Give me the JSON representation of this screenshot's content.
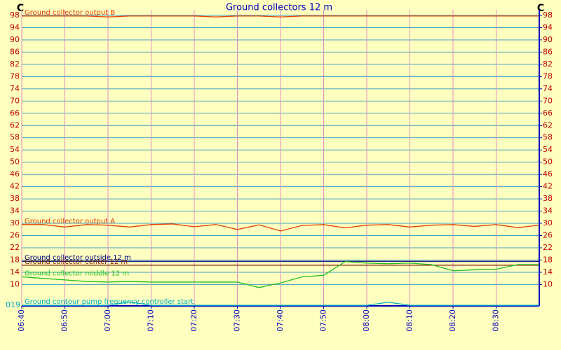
{
  "chart_data": {
    "type": "line",
    "title": "Ground collectors 12 m",
    "y_unit": "C",
    "annotation": "019",
    "x": [
      400,
      405,
      410,
      415,
      420,
      425,
      430,
      435,
      440,
      445,
      450,
      455,
      460,
      465,
      470,
      475,
      480,
      485,
      490,
      495,
      500,
      505,
      510,
      515,
      520
    ],
    "xlim": [
      400,
      520
    ],
    "xticks": [
      {
        "value": 400,
        "label": "06:40"
      },
      {
        "value": 410,
        "label": "06:50"
      },
      {
        "value": 420,
        "label": "07:00"
      },
      {
        "value": 430,
        "label": "07:10"
      },
      {
        "value": 440,
        "label": "07:20"
      },
      {
        "value": 450,
        "label": "07:30"
      },
      {
        "value": 460,
        "label": "07:40"
      },
      {
        "value": 470,
        "label": "07:50"
      },
      {
        "value": 480,
        "label": "08:00"
      },
      {
        "value": 490,
        "label": "08:10"
      },
      {
        "value": 500,
        "label": "08:20"
      },
      {
        "value": 510,
        "label": "08:30"
      }
    ],
    "ylim": [
      3,
      98
    ],
    "yticks": [
      98,
      94,
      90,
      86,
      82,
      78,
      74,
      70,
      66,
      62,
      58,
      54,
      50,
      46,
      42,
      38,
      34,
      30,
      26,
      22,
      18,
      14,
      10
    ],
    "grid": true,
    "series": [
      {
        "name": "Ground collector output B",
        "color": "#e04000",
        "values": [
          97.8,
          97.8,
          97.8,
          97.8,
          97.5,
          97.8,
          97.8,
          97.8,
          97.8,
          97.5,
          97.8,
          97.8,
          97.5,
          97.8,
          97.8,
          97.8,
          97.8,
          97.8,
          97.8,
          97.8,
          97.8,
          97.8,
          97.8,
          97.8,
          97.8
        ]
      },
      {
        "name": "Ground collector output A",
        "color": "#e04000",
        "values": [
          29.6,
          29.6,
          28.8,
          29.6,
          29.4,
          28.8,
          29.6,
          29.8,
          28.9,
          29.6,
          28.0,
          29.5,
          27.5,
          29.3,
          29.6,
          28.5,
          29.4,
          29.6,
          28.8,
          29.4,
          29.6,
          29.0,
          29.6,
          28.6,
          29.4
        ]
      },
      {
        "name": "Ground collector outside 12 m",
        "color": "#000080",
        "values": [
          17.6,
          17.6,
          17.6,
          17.6,
          17.6,
          17.6,
          17.6,
          17.6,
          17.6,
          17.6,
          17.6,
          17.6,
          17.6,
          17.6,
          17.6,
          17.6,
          17.6,
          17.6,
          17.6,
          17.6,
          17.6,
          17.6,
          17.6,
          17.6,
          17.6
        ]
      },
      {
        "name": "Ground collector center 12 m",
        "color": "#802000",
        "values": [
          16.3,
          16.3,
          16.3,
          16.3,
          16.3,
          16.3,
          16.3,
          16.3,
          16.3,
          16.3,
          16.3,
          16.3,
          16.3,
          16.3,
          16.3,
          16.3,
          16.3,
          16.3,
          16.3,
          16.3,
          16.3,
          16.3,
          16.3,
          16.3,
          16.3
        ]
      },
      {
        "name": "Ground collector middle 12 m",
        "color": "#20c020",
        "values": [
          12.5,
          12,
          11.5,
          11,
          10.8,
          11,
          10.8,
          10.8,
          10.8,
          10.8,
          10.8,
          9,
          10.5,
          12.5,
          13,
          17.5,
          17,
          16.8,
          17,
          16.5,
          14.5,
          14.8,
          15,
          16.5,
          16.5
        ]
      },
      {
        "name": "Ground contour pump frequency controller start",
        "color": "#00b0c0",
        "values": [
          3.2,
          3.2,
          3.2,
          3.2,
          3.2,
          4.3,
          3.2,
          3.2,
          3.2,
          3.2,
          3.2,
          3.2,
          3.2,
          3.2,
          3.2,
          3.2,
          3.2,
          4.2,
          3.2,
          3.2,
          3.2,
          3.2,
          3.2,
          3.2,
          3.2
        ]
      }
    ]
  }
}
